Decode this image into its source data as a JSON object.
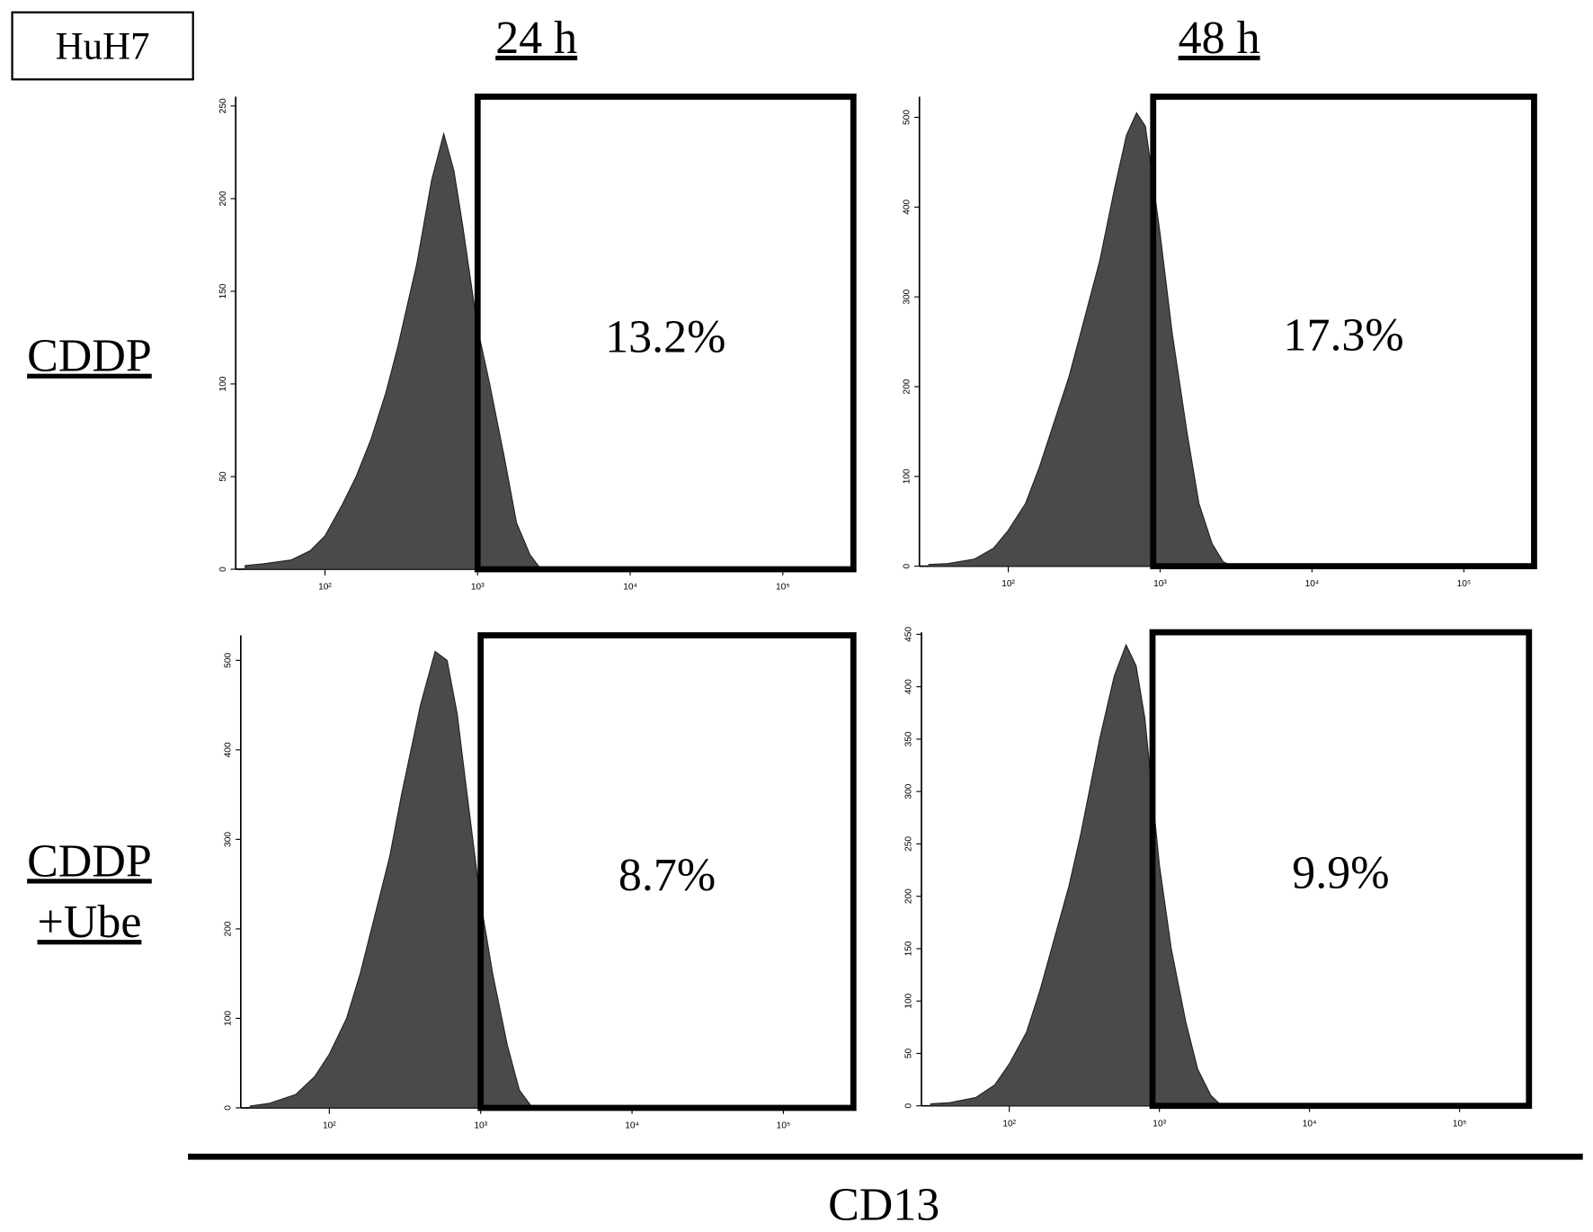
{
  "figure": {
    "label": "HuH7",
    "columns": [
      "24 h",
      "48 h"
    ],
    "rows": [
      [
        "CDDP"
      ],
      [
        "CDDP",
        "+Ube"
      ]
    ],
    "xlabel": "CD13"
  },
  "chart_data": [
    {
      "type": "area",
      "annotation": "13.2%",
      "color": "#4a4a4a",
      "xscale": "log",
      "gate": [
        1000,
        290000
      ],
      "xlim": [
        26,
        290000
      ],
      "ylim": [
        0,
        255
      ],
      "xticks": [
        {
          "value": 100,
          "label": "10²"
        },
        {
          "value": 1000,
          "label": "10³"
        },
        {
          "value": 10000,
          "label": "10⁴"
        },
        {
          "value": 100000,
          "label": "10⁵"
        }
      ],
      "yticks": [
        0,
        50,
        100,
        150,
        200,
        250
      ],
      "x": [
        30,
        40,
        60,
        80,
        100,
        130,
        160,
        200,
        250,
        300,
        400,
        500,
        600,
        700,
        800,
        1000,
        1200,
        1500,
        1800,
        2200,
        2600
      ],
      "values": [
        2,
        3,
        5,
        10,
        18,
        35,
        50,
        70,
        95,
        120,
        165,
        210,
        235,
        215,
        185,
        130,
        100,
        60,
        25,
        8,
        0
      ]
    },
    {
      "type": "area",
      "annotation": "17.3%",
      "color": "#4a4a4a",
      "xscale": "log",
      "gate": [
        900,
        290000
      ],
      "xlim": [
        26,
        290000
      ],
      "ylim": [
        0,
        523
      ],
      "xticks": [
        {
          "value": 100,
          "label": "10²"
        },
        {
          "value": 1000,
          "label": "10³"
        },
        {
          "value": 10000,
          "label": "10⁴"
        },
        {
          "value": 100000,
          "label": "10⁵"
        }
      ],
      "yticks": [
        0,
        100,
        200,
        300,
        400,
        500
      ],
      "x": [
        30,
        40,
        60,
        80,
        100,
        130,
        160,
        200,
        250,
        300,
        400,
        500,
        600,
        700,
        800,
        1000,
        1200,
        1500,
        1800,
        2200,
        2600,
        3000
      ],
      "values": [
        2,
        3,
        8,
        20,
        40,
        70,
        110,
        160,
        210,
        260,
        340,
        420,
        480,
        505,
        490,
        370,
        260,
        150,
        70,
        25,
        5,
        0
      ]
    },
    {
      "type": "area",
      "annotation": "8.7%",
      "color": "#4a4a4a",
      "xscale": "log",
      "gate": [
        1000,
        290000
      ],
      "xlim": [
        26,
        290000
      ],
      "ylim": [
        0,
        528
      ],
      "xticks": [
        {
          "value": 100,
          "label": "10²"
        },
        {
          "value": 1000,
          "label": "10³"
        },
        {
          "value": 10000,
          "label": "10⁴"
        },
        {
          "value": 100000,
          "label": "10⁵"
        }
      ],
      "yticks": [
        0,
        100,
        200,
        300,
        400,
        500
      ],
      "x": [
        30,
        40,
        60,
        80,
        100,
        130,
        160,
        200,
        250,
        300,
        400,
        500,
        600,
        700,
        800,
        1000,
        1200,
        1500,
        1800,
        2200
      ],
      "values": [
        2,
        5,
        15,
        35,
        60,
        100,
        150,
        215,
        280,
        350,
        450,
        510,
        500,
        440,
        360,
        230,
        150,
        70,
        20,
        0
      ]
    },
    {
      "type": "area",
      "annotation": "9.9%",
      "color": "#4a4a4a",
      "xscale": "log",
      "gate": [
        900,
        290000
      ],
      "xlim": [
        26,
        290000
      ],
      "ylim": [
        0,
        452
      ],
      "xticks": [
        {
          "value": 100,
          "label": "10²"
        },
        {
          "value": 1000,
          "label": "10³"
        },
        {
          "value": 10000,
          "label": "10⁴"
        },
        {
          "value": 100000,
          "label": "10⁵"
        }
      ],
      "yticks": [
        0,
        50,
        100,
        150,
        200,
        250,
        300,
        350,
        400,
        450
      ],
      "x": [
        30,
        40,
        60,
        80,
        100,
        130,
        160,
        200,
        250,
        300,
        400,
        500,
        600,
        700,
        800,
        1000,
        1200,
        1500,
        1800,
        2200,
        2600
      ],
      "values": [
        2,
        3,
        8,
        20,
        40,
        70,
        110,
        160,
        210,
        260,
        350,
        410,
        440,
        420,
        370,
        230,
        150,
        80,
        35,
        10,
        0
      ]
    }
  ]
}
